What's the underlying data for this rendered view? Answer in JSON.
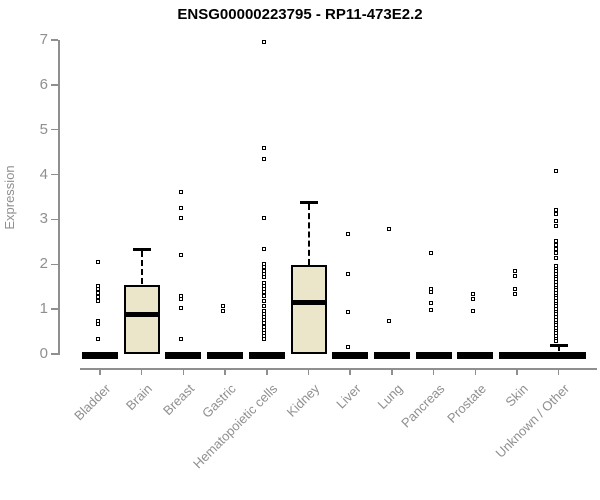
{
  "chart_data": {
    "type": "boxplot",
    "title": "ENSG00000223795 - RP11-473E2.2",
    "ylabel": "Expression",
    "xlabel": "",
    "ylim": [
      0,
      7
    ],
    "yticks": [
      0,
      1,
      2,
      3,
      4,
      5,
      6,
      7
    ],
    "grid": false,
    "legend": null,
    "categories": [
      "Bladder",
      "Brain",
      "Breast",
      "Gastric",
      "Hematopoietic cells",
      "Kidney",
      "Liver",
      "Lung",
      "Pancreas",
      "Prostate",
      "Skin",
      "Unknown / Other"
    ],
    "boxes": [
      {
        "category": "Bladder",
        "q1": 0,
        "median": 0,
        "q3": 0.03,
        "whisker_low": 0,
        "whisker_high": 0.03,
        "outliers": [
          2.04,
          1.51,
          1.43,
          1.35,
          1.27,
          1.18,
          0.73,
          0.65,
          0.32
        ]
      },
      {
        "category": "Brain",
        "q1": 0,
        "median": 0.87,
        "q3": 1.54,
        "whisker_low": 0,
        "whisker_high": 2.32,
        "outliers": []
      },
      {
        "category": "Breast",
        "q1": 0,
        "median": 0,
        "q3": 0.03,
        "whisker_low": 0,
        "whisker_high": 0.03,
        "outliers": [
          3.61,
          3.25,
          3.03,
          2.19,
          1.29,
          1.22,
          1.02,
          0.32
        ]
      },
      {
        "category": "Gastric",
        "q1": 0,
        "median": 0,
        "q3": 0.03,
        "whisker_low": 0,
        "whisker_high": 0.03,
        "outliers": [
          1.06,
          0.95
        ]
      },
      {
        "category": "Hematopoietic cells",
        "q1": 0,
        "median": 0,
        "q3": 0.03,
        "whisker_low": 0,
        "whisker_high": 0.03,
        "outliers": [
          6.95,
          4.59,
          4.33,
          3.01,
          2.32,
          1.99,
          1.92,
          1.85,
          1.78,
          1.71,
          1.58,
          1.5,
          1.43,
          1.36,
          1.28,
          1.17,
          1.06,
          0.95,
          0.88,
          0.81,
          0.74,
          0.67,
          0.6,
          0.53,
          0.46,
          0.39,
          0.33
        ]
      },
      {
        "category": "Kidney",
        "q1": 0,
        "median": 1.15,
        "q3": 1.98,
        "whisker_low": 0,
        "whisker_high": 3.38,
        "outliers": []
      },
      {
        "category": "Liver",
        "q1": 0,
        "median": 0,
        "q3": 0.03,
        "whisker_low": 0,
        "whisker_high": 0.03,
        "outliers": [
          2.66,
          1.78,
          0.93,
          0.14
        ]
      },
      {
        "category": "Lung",
        "q1": 0,
        "median": 0,
        "q3": 0.03,
        "whisker_low": 0,
        "whisker_high": 0.03,
        "outliers": [
          2.77,
          0.73
        ]
      },
      {
        "category": "Pancreas",
        "q1": 0,
        "median": 0,
        "q3": 0.03,
        "whisker_low": 0,
        "whisker_high": 0.03,
        "outliers": [
          2.25,
          1.43,
          1.37,
          1.12,
          0.97
        ]
      },
      {
        "category": "Prostate",
        "q1": 0,
        "median": 0,
        "q3": 0.03,
        "whisker_low": 0,
        "whisker_high": 0.03,
        "outliers": [
          1.33,
          1.21,
          0.94
        ]
      },
      {
        "category": "Skin",
        "q1": 0,
        "median": 0,
        "q3": 0.03,
        "whisker_low": 0,
        "whisker_high": 0.03,
        "outliers": [
          1.84,
          1.73,
          1.43,
          1.32
        ]
      },
      {
        "category": "Unknown / Other",
        "q1": 0,
        "median": 0,
        "q3": 0.05,
        "whisker_low": 0,
        "whisker_high": 0.18,
        "wide": true,
        "outliers": [
          4.07,
          3.21,
          3.1,
          2.95,
          2.84,
          2.51,
          2.42,
          2.33,
          2.24,
          2.14,
          1.95,
          1.89,
          1.83,
          1.77,
          1.71,
          1.65,
          1.59,
          1.53,
          1.47,
          1.41,
          1.35,
          1.29,
          1.23,
          1.17,
          1.11,
          1.05,
          0.99,
          0.93,
          0.87,
          0.81,
          0.75,
          0.69,
          0.63,
          0.57,
          0.51,
          0.45,
          0.39,
          0.33,
          0.28
        ]
      }
    ],
    "colors": {
      "box_fill": "#ebe6c9",
      "box_stroke": "#000000",
      "median": "#000000",
      "outlier_fill": "#ffffff",
      "outlier_stroke": "#000000",
      "axis": "#8f8f8f",
      "tick_label": "#8f8f8f",
      "title": "#000000"
    },
    "layout": {
      "legend_position": "none",
      "x_label_rotation_deg": 45
    }
  }
}
